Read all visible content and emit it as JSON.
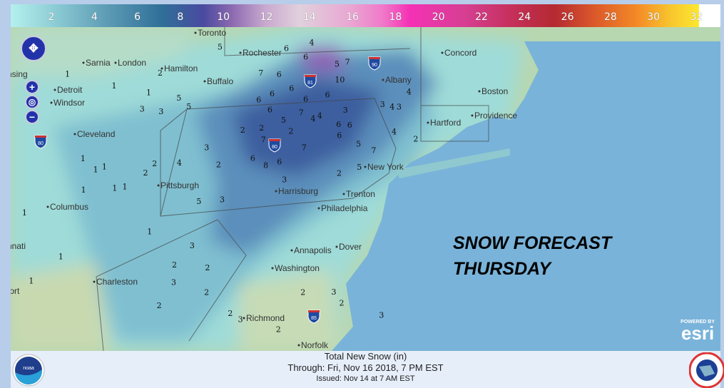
{
  "legend": {
    "ticks": [
      "2",
      "4",
      "6",
      "8",
      "10",
      "12",
      "14",
      "16",
      "18",
      "20",
      "22",
      "24",
      "26",
      "28",
      "30",
      "32"
    ],
    "unit": "in"
  },
  "map": {
    "cities": [
      "Toronto",
      "Hamilton",
      "Sarnia",
      "London",
      "nsing",
      "Detroit",
      "Windsor",
      "Buffalo",
      "Rochester",
      "Albany",
      "Concord",
      "Boston",
      "Hartford",
      "Providence",
      "Cleveland",
      "Pittsburgh",
      "Harrisburg",
      "New York",
      "Trenton",
      "Philadelphia",
      "Columbus",
      "nnati",
      "Dover",
      "Annapolis",
      "Washington",
      "Charleston",
      "Richmond",
      "Norfolk",
      "fort"
    ],
    "interstates": [
      "90",
      "81",
      "80",
      "80",
      "85"
    ],
    "snow_labels": [
      "1",
      "2",
      "1",
      "1",
      "1",
      "2",
      "3",
      "4",
      "5",
      "6",
      "7",
      "10",
      "8",
      "7",
      "6",
      "6",
      "6",
      "6",
      "7",
      "6",
      "5",
      "6",
      "4",
      "5",
      "7",
      "6",
      "6",
      "7",
      "7",
      "5",
      "4",
      "6",
      "6",
      "6",
      "5",
      "5",
      "4",
      "3",
      "2",
      "3",
      "2",
      "2",
      "2",
      "2",
      "3",
      "3",
      "2",
      "3",
      "3",
      "3",
      "4",
      "3",
      "2",
      "1",
      "1",
      "1",
      "1",
      "1",
      "1",
      "2",
      "4",
      "3",
      "3",
      "2",
      "5",
      "5",
      "6",
      "6",
      "2",
      "3",
      "2",
      "2",
      "4",
      "3",
      "1",
      "1",
      "2",
      "2",
      "2",
      "1"
    ]
  },
  "overlay": {
    "line1": "SNOW FORECAST",
    "line2": "THURSDAY"
  },
  "esri": {
    "powered": "POWERED BY",
    "brand": "esri"
  },
  "footer": {
    "title": "Total New Snow (in)",
    "through": "Through: Fri, Nov 16 2018,   7 PM EST",
    "issued": "Issued: Nov 14 at 7 AM EST",
    "noaa_logo": "NOAA",
    "nws_logo": "NATIONAL WEATHER SERVICE"
  },
  "colors": {
    "ocean": "#79b3d9",
    "light_snow": "#9fdbd8",
    "heavy_snow": "#3b5c9c",
    "max_snow": "#8d62b5"
  }
}
